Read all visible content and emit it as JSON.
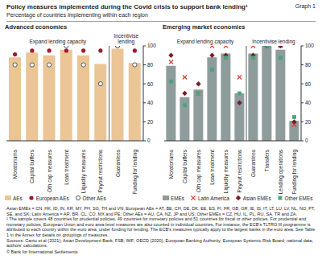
{
  "title": "Policy measures implemented during the Covid crisis to support bank lending¹",
  "graph_label": "Graph 1",
  "subtitle": "Percentage of countries implementing within each region",
  "chart_data": [
    {
      "type": "bar",
      "title": "Advanced economies",
      "categories": [
        "Moratoriums",
        "Capital buffers",
        "Oth cap measures",
        "Loan treatment",
        "Liquidity measures",
        "Payout restrictions",
        "Guarantees",
        "Funding for lending"
      ],
      "groups": [
        {
          "label": "Expand lending capacity",
          "categories": [
            "Moratoriums",
            "Capital buffers",
            "Oth cap measures",
            "Loan treatment",
            "Liquidity measures",
            "Payout restrictions"
          ]
        },
        {
          "label": "Incentivise lending",
          "categories": [
            "Guarantees",
            "Funding for lending"
          ]
        }
      ],
      "series": [
        {
          "name": "AEs",
          "type": "bar",
          "color": "#ebc595",
          "values": [
            88,
            93,
            90,
            96,
            90,
            81,
            97,
            82
          ]
        },
        {
          "name": "European AEs",
          "type": "scatter",
          "marker": "circle",
          "color": "#9d1c2f",
          "values": [
            91,
            95,
            95,
            95,
            95,
            95,
            100,
            95
          ]
        },
        {
          "name": "Other AEs",
          "type": "scatter",
          "marker": "open_circle",
          "color": "#3d4a55",
          "values": [
            80,
            80,
            80,
            100,
            80,
            60,
            100,
            80
          ]
        }
      ],
      "ylim": [
        0,
        100
      ],
      "yticks": [
        0,
        20,
        40,
        60,
        80,
        100
      ],
      "grid": false,
      "legend": "bottom"
    },
    {
      "type": "bar",
      "title": "Emerging market economies",
      "categories": [
        "Moratoriums",
        "Capital buffers",
        "Oth cap measures",
        "Loan treatment",
        "Liquidity measures",
        "Payout restrictions",
        "Guarantees",
        "Transfers",
        "Lending operations",
        "Funding for lending"
      ],
      "groups": [
        {
          "label": "Expand lending capacity",
          "categories": [
            "Moratoriums",
            "Capital buffers",
            "Oth cap measures",
            "Loan treatment",
            "Liquidity measures",
            "Payout restrictions"
          ]
        },
        {
          "label": "Incentivise lending",
          "categories": [
            "Guarantees",
            "Transfers",
            "Lending operations",
            "Funding for lending"
          ]
        }
      ],
      "series": [
        {
          "name": "EMEs",
          "type": "bar",
          "color": "#8e9c9c",
          "values": [
            79,
            46,
            54,
            88,
            92,
            50,
            92,
            100,
            96,
            21
          ]
        },
        {
          "name": "Latin America",
          "type": "scatter",
          "marker": "x",
          "color": "#e03c31",
          "values": [
            83,
            67,
            50,
            100,
            100,
            67,
            100,
            100,
            100,
            17
          ]
        },
        {
          "name": "Asian EMEs",
          "type": "scatter",
          "marker": "diamond",
          "color": "#7b1d2a",
          "values": [
            90,
            50,
            60,
            90,
            90,
            40,
            90,
            100,
            100,
            20
          ]
        },
        {
          "name": "Other EMEs",
          "type": "scatter",
          "marker": "square",
          "color": "#4aa37d",
          "values": [
            62.5,
            37.5,
            50,
            75,
            87.5,
            50,
            87.5,
            100,
            87.5,
            25
          ]
        }
      ],
      "ylim": [
        0,
        100
      ],
      "yticks": [
        0,
        20,
        40,
        60,
        80,
        100
      ],
      "grid": false,
      "legend": "bottom"
    }
  ],
  "notes": [
    "Asian EMEs = CN, HK, ID, IN, KR, MY, PH, SG, TH and VN; European AEs = AT, BE, CH, DE, DK, EE, ES, FI, FR, GB, GR, IE, IS, IT, LT, LU, LV, NL, NO, PT, SE, and SK; Latin America = AR, BR, CL, CO, MX and PE; Other AEs = AU, CA, NZ, JP and US; Other EMEs = CZ, HU, IL, PL, RU, SA, TR and ZA.",
    "¹ The sample covers 48 countries for prudential policies, 49 countries for monetary policies and 51 countries for fiscal or other policies. For prudential and monetary policies, European Union and euro area-level measures are also counted in individual countries. For instance, the ECB's TLTRO III programme is attributed to each country within the euro area, under funding for lending. The ECB's measures typically apply to the largest banks in the euro area. See Table 1 in the Annex for details on groupings of measures.",
    "Sources: Cantu et al (2021); Asian Development Bank; FSB; IMF; OECD (2020); European Banking Authority; European Systemic Risk Board; national data; authors' calculations."
  ],
  "copyright": "© Bank for International Settlements"
}
